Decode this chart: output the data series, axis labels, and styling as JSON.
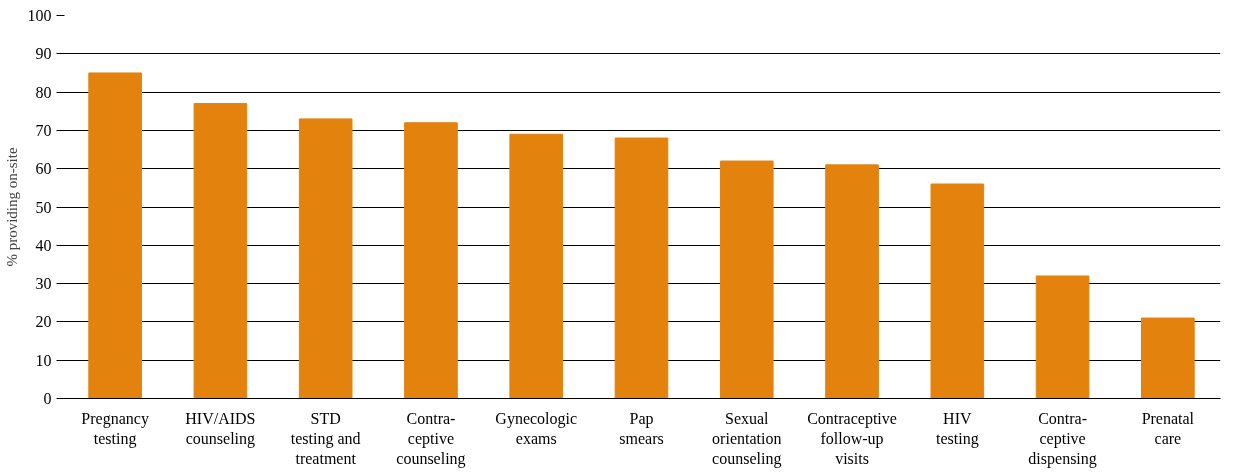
{
  "chart_data": {
    "type": "bar",
    "ylabel": "% providing on-site",
    "categories": [
      "Pregnancy\ntesting",
      "HIV/AIDS\ncounseling",
      "STD\ntesting and\ntreatment",
      "Contra-\nceptive\ncounseling",
      "Gynecologic\nexams",
      "Pap\nsmears",
      "Sexual\norientation\ncounseling",
      "Contraceptive\nfollow-up\nvisits",
      "HIV\ntesting",
      "Contra-\nceptive\ndispensing",
      "Prenatal\ncare"
    ],
    "values": [
      85,
      77,
      73,
      72,
      69,
      68,
      62,
      61,
      56,
      32,
      21
    ],
    "color": "#e3820d",
    "ylim": [
      0,
      100
    ],
    "yticks": [
      0,
      10,
      20,
      30,
      40,
      50,
      60,
      70,
      80,
      90,
      100
    ],
    "grid": "y"
  }
}
